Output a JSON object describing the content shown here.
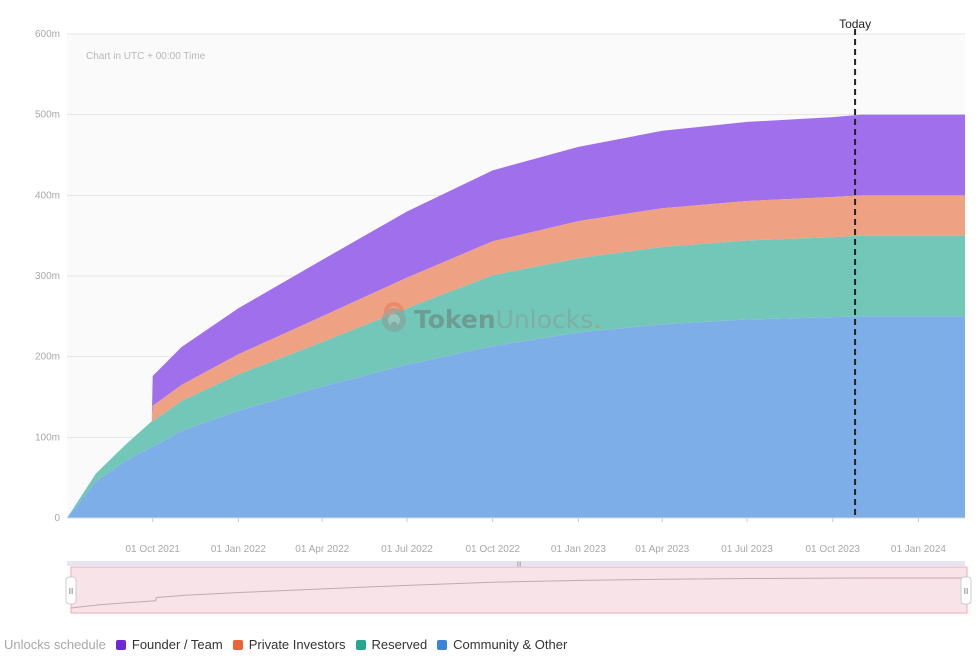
{
  "chart_data": {
    "type": "area",
    "stacked": true,
    "note": "Chart in UTC + 00:00 Time",
    "today_label": "Today",
    "today_date": "2023-10-25",
    "y_tick_labels": [
      "0",
      "100m",
      "200m",
      "300m",
      "400m",
      "500m",
      "600m"
    ],
    "ylim": [
      0,
      600000000
    ],
    "xlim": [
      "2021-07-01",
      "2024-02-20"
    ],
    "x_ticks": [
      {
        "date": "2021-10-01",
        "label": "01 Oct 2021"
      },
      {
        "date": "2022-01-01",
        "label": "01 Jan 2022"
      },
      {
        "date": "2022-04-01",
        "label": "01 Apr 2022"
      },
      {
        "date": "2022-07-01",
        "label": "01 Jul 2022"
      },
      {
        "date": "2022-10-01",
        "label": "01 Oct 2022"
      },
      {
        "date": "2023-01-01",
        "label": "01 Jan 2023"
      },
      {
        "date": "2023-04-01",
        "label": "01 Apr 2023"
      },
      {
        "date": "2023-07-01",
        "label": "01 Jul 2023"
      },
      {
        "date": "2023-10-01",
        "label": "01 Oct 2023"
      },
      {
        "date": "2024-01-01",
        "label": "01 Jan 2024"
      }
    ],
    "x": [
      "2021-07-01",
      "2021-08-01",
      "2021-09-01",
      "2021-09-30",
      "2021-10-01",
      "2021-11-01",
      "2022-01-01",
      "2022-04-01",
      "2022-07-01",
      "2022-10-01",
      "2023-01-01",
      "2023-04-01",
      "2023-07-01",
      "2023-10-01",
      "2023-11-01",
      "2024-02-20"
    ],
    "series": [
      {
        "name": "Community & Other",
        "color": "#7daee8",
        "values": [
          0,
          45000000,
          70000000,
          88000000,
          88000000,
          108000000,
          133000000,
          163000000,
          190000000,
          213000000,
          230000000,
          240000000,
          246000000,
          249000000,
          250000000,
          250000000
        ]
      },
      {
        "name": "Reserved",
        "color": "#73c7b8",
        "values": [
          0,
          10000000,
          20000000,
          32000000,
          32000000,
          37000000,
          45000000,
          55000000,
          70000000,
          88000000,
          92000000,
          96000000,
          98000000,
          99000000,
          100000000,
          100000000
        ]
      },
      {
        "name": "Private Investors",
        "color": "#efa283",
        "values": [
          0,
          0,
          0,
          0,
          19000000,
          20000000,
          25000000,
          32000000,
          38000000,
          42000000,
          46000000,
          48000000,
          49000000,
          50000000,
          50000000,
          50000000
        ]
      },
      {
        "name": "Founder / Team",
        "color": "#a06fec",
        "values": [
          0,
          0,
          0,
          0,
          37000000,
          47000000,
          57000000,
          70000000,
          82000000,
          88000000,
          92000000,
          96000000,
          98000000,
          99000000,
          100000000,
          100000000
        ]
      }
    ],
    "legend": {
      "title": "Unlocks schedule",
      "position": "bottom-left",
      "items": [
        {
          "label": "Founder / Team",
          "color": "#6f28d6"
        },
        {
          "label": "Private Investors",
          "color": "#e8643a"
        },
        {
          "label": "Reserved",
          "color": "#27a68e"
        },
        {
          "label": "Community & Other",
          "color": "#3a84dd"
        }
      ]
    },
    "watermark": {
      "part1": "Token",
      "part2": "Unlocks",
      "part3": "."
    },
    "navigator": {
      "fill": "#f7e3e8",
      "line_color": "#c4a9b1",
      "handle_glyph": "II"
    },
    "grid": true
  }
}
